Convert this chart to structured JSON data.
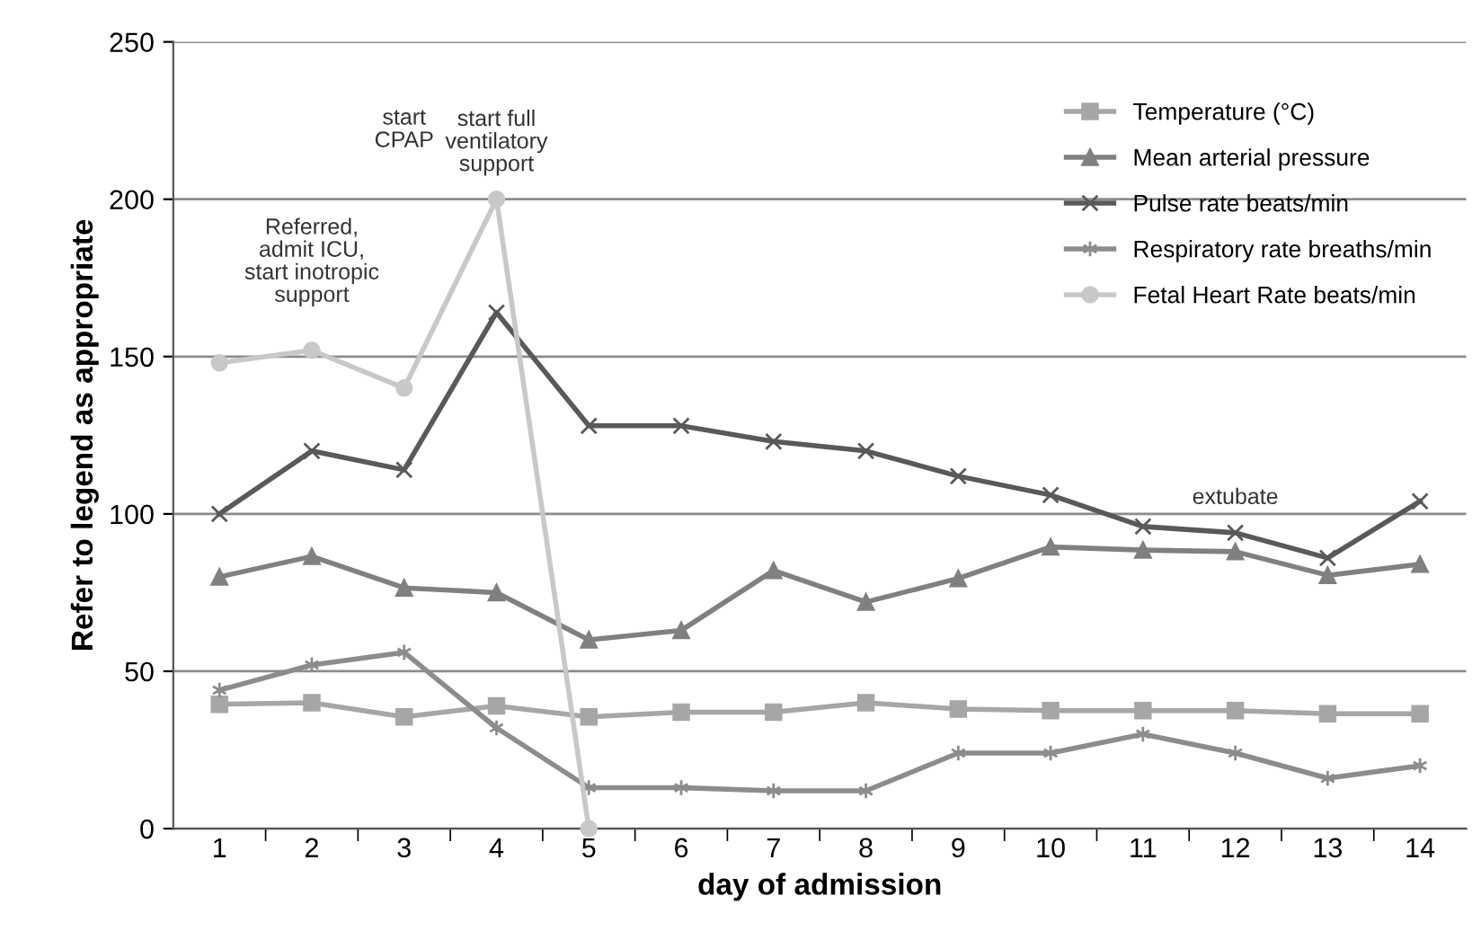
{
  "chart_data": {
    "type": "line",
    "xlabel": "day of admission",
    "ylabel": "Refer to legend as appropriate",
    "categories": [
      "1",
      "2",
      "3",
      "4",
      "5",
      "6",
      "7",
      "8",
      "9",
      "10",
      "11",
      "12",
      "13",
      "14"
    ],
    "series": [
      {
        "name": "Temperature (°C)",
        "color": "#a6a6a6",
        "marker": "square",
        "values": [
          39.5,
          40,
          35.5,
          39,
          35.5,
          37,
          37,
          40,
          38,
          37.5,
          37.5,
          37.5,
          36.5,
          36.5
        ]
      },
      {
        "name": "Mean arterial pressure",
        "color": "#808080",
        "marker": "triangle",
        "values": [
          80,
          86.5,
          76.5,
          75,
          60,
          63,
          82,
          72,
          79.5,
          89.5,
          88.5,
          88,
          80.5,
          84
        ]
      },
      {
        "name": "Pulse rate beats/min",
        "color": "#595959",
        "marker": "cross",
        "values": [
          100,
          120,
          114,
          164,
          128,
          128,
          123,
          120,
          112,
          106,
          96,
          94,
          86,
          104
        ]
      },
      {
        "name": "Respiratory rate breaths/min",
        "color": "#8c8c8c",
        "marker": "cross",
        "values": [
          44,
          52,
          56,
          32,
          13,
          13,
          12,
          12,
          24,
          24,
          30,
          24,
          16,
          20
        ]
      },
      {
        "name": "Fetal Heart Rate beats/min",
        "color": "#c8c8c8",
        "marker": "circle",
        "values": [
          148,
          152,
          140,
          200,
          0,
          null,
          null,
          null,
          null,
          null,
          null,
          null,
          null,
          null
        ]
      }
    ],
    "ylim": [
      0,
      250
    ],
    "yticks": [
      0,
      50,
      100,
      150,
      200,
      250
    ],
    "grid": "y",
    "legend": "top right",
    "annotations": [
      "Referred,\nadmit ICU,\nstart inotropic\nsupport",
      "start\nCPAP",
      "start full\nventilatory\nsupport",
      "extubate"
    ]
  }
}
